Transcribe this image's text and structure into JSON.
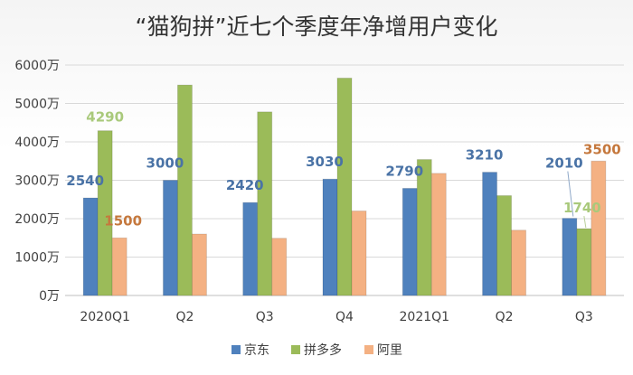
{
  "chart_data": {
    "type": "bar",
    "title": "“猫狗拼”近七个季度年净增用户变化",
    "categories": [
      "2020Q1",
      "Q2",
      "Q3",
      "Q4",
      "2021Q1",
      "Q2",
      "Q3"
    ],
    "series": [
      {
        "name": "京东",
        "color": "#4f81bd",
        "label_color": "#4a73a6",
        "values": [
          2540,
          3000,
          2420,
          3030,
          2790,
          3210,
          2010
        ]
      },
      {
        "name": "拼多多",
        "color": "#9bbb59",
        "label_color": "#a9c97b",
        "values": [
          4290,
          5480,
          4780,
          5660,
          3540,
          2600,
          1740
        ]
      },
      {
        "name": "阿里",
        "color": "#f4b183",
        "label_color": "#c5783d",
        "values": [
          1500,
          1600,
          1490,
          2200,
          3180,
          1700,
          3500
        ]
      }
    ],
    "data_labels": [
      {
        "series": 0,
        "index": 0,
        "text": "2540"
      },
      {
        "series": 1,
        "index": 0,
        "text": "4290"
      },
      {
        "series": 2,
        "index": 0,
        "text": "1500"
      },
      {
        "series": 0,
        "index": 1,
        "text": "3000"
      },
      {
        "series": 0,
        "index": 2,
        "text": "2420"
      },
      {
        "series": 0,
        "index": 3,
        "text": "3030"
      },
      {
        "series": 0,
        "index": 4,
        "text": "2790"
      },
      {
        "series": 0,
        "index": 5,
        "text": "3210"
      },
      {
        "series": 0,
        "index": 6,
        "text": "2010"
      },
      {
        "series": 1,
        "index": 6,
        "text": "1740"
      },
      {
        "series": 2,
        "index": 6,
        "text": "3500"
      }
    ],
    "yticks": [
      {
        "value": 0,
        "label": "0万"
      },
      {
        "value": 1000,
        "label": "1000万"
      },
      {
        "value": 2000,
        "label": "2000万"
      },
      {
        "value": 3000,
        "label": "3000万"
      },
      {
        "value": 4000,
        "label": "4000万"
      },
      {
        "value": 5000,
        "label": "5000万"
      },
      {
        "value": 6000,
        "label": "6000万"
      }
    ],
    "ylim": [
      0,
      6000
    ],
    "grid": true,
    "legend_position": "bottom"
  }
}
